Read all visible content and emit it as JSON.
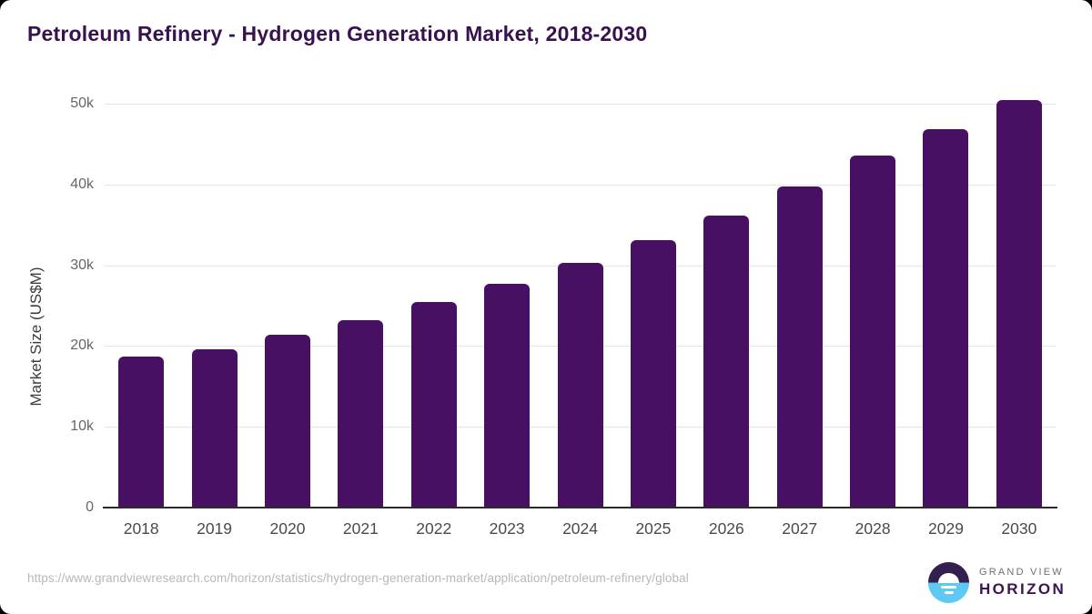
{
  "header": {
    "title": "Petroleum Refinery - Hydrogen Generation Market, 2018-2030"
  },
  "chart_data": {
    "type": "bar",
    "title": "Petroleum Refinery - Hydrogen Generation Market, 2018-2030",
    "categories": [
      "2018",
      "2019",
      "2020",
      "2021",
      "2022",
      "2023",
      "2024",
      "2025",
      "2026",
      "2027",
      "2028",
      "2029",
      "2030"
    ],
    "values": [
      18700,
      19600,
      21400,
      23200,
      25400,
      27700,
      30300,
      33100,
      36200,
      39800,
      43600,
      46900,
      50400
    ],
    "xlabel": "",
    "ylabel": "Market Size (US$M)",
    "ylim": [
      0,
      50000
    ],
    "ytick_values": [
      0,
      10000,
      20000,
      30000,
      40000,
      50000
    ],
    "ytick_labels": [
      "0",
      "10k",
      "20k",
      "30k",
      "40k",
      "50k"
    ],
    "grid": true,
    "legend": false,
    "bar_color": "#471062"
  },
  "footer": {
    "source_url": "https://www.grandviewresearch.com/horizon/statistics/hydrogen-generation-market/application/petroleum-refinery/global",
    "logo": {
      "brand_top": "GRAND VIEW",
      "brand_bottom": "HORIZON"
    }
  },
  "colors": {
    "bar": "#471062",
    "title_text": "#38114f",
    "logo_purple": "#33204e",
    "logo_blue": "#5ec9f3",
    "gridline": "#e4e4e4"
  }
}
